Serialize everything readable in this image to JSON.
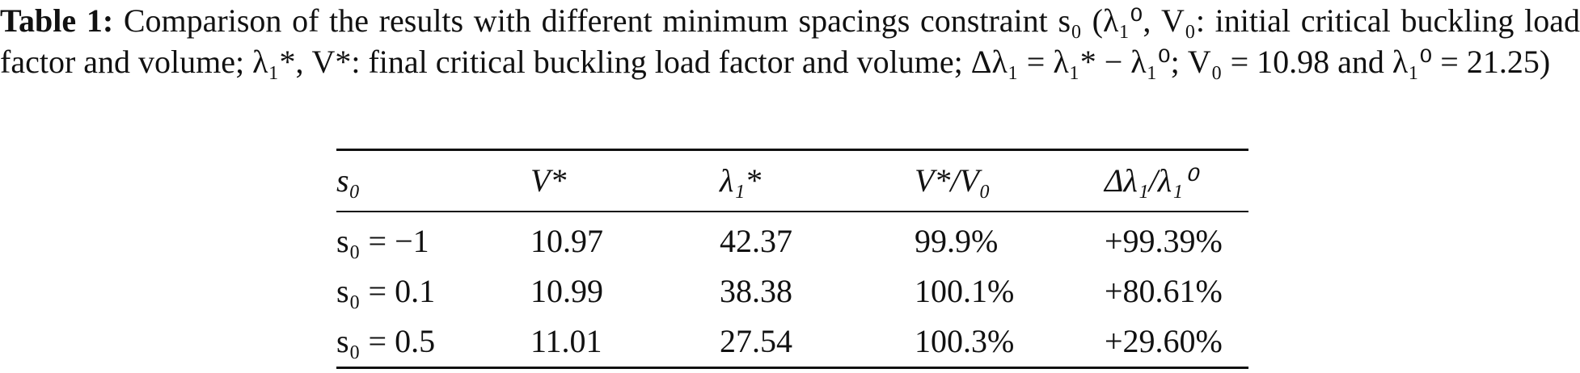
{
  "caption": {
    "label": "Table 1:",
    "text": "Comparison of the results with different minimum spacings constraint s₀ (λ₁⁰, V₀: initial critical buckling load factor and volume; λ₁*, V*: final critical buckling load factor and volume; Δλ₁ = λ₁* − λ₁⁰; V₀ = 10.98 and λ₁⁰ = 21.25)"
  },
  "table": {
    "header": [
      "s₀",
      "V*",
      "λ₁*",
      "V*/V₀",
      "Δλ₁/λ₁⁰"
    ],
    "rows": [
      [
        "s₀ = −1",
        "10.97",
        "42.37",
        "99.9%",
        "+99.39%"
      ],
      [
        "s₀ = 0.1",
        "10.99",
        "38.38",
        "100.1%",
        "+80.61%"
      ],
      [
        "s₀ = 0.5",
        "11.01",
        "27.54",
        "100.3%",
        "+29.60%"
      ]
    ]
  }
}
